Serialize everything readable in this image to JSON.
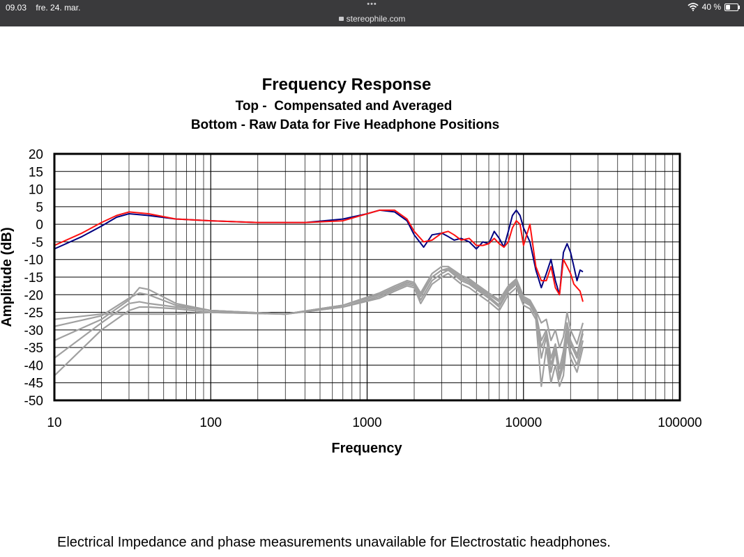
{
  "status_bar": {
    "time": "09.03",
    "date": "fre. 24. mar.",
    "dots": "•••",
    "url": "stereophile.com",
    "battery": "40 %",
    "battery_level": 0.4
  },
  "caption": "Electrical Impedance and phase measurements unavailable for Electrostatic headphones.",
  "colors": {
    "compensated_a": "#000080",
    "compensated_b": "#ff1010",
    "raw": "#a0a0a0"
  },
  "chart_data": {
    "type": "line",
    "title": "Frequency Response",
    "subtitle_1": "Top -  Compensated and Averaged",
    "subtitle_2": "Bottom - Raw Data for Five Headphone Positions",
    "xlabel": "Frequency",
    "ylabel": "Amplitude (dB)",
    "x_scale": "log",
    "xlim": [
      10,
      100000
    ],
    "ylim": [
      -50,
      20
    ],
    "grid": true,
    "x_ticks": [
      {
        "v": 10,
        "label": "10"
      },
      {
        "v": 100,
        "label": "100"
      },
      {
        "v": 1000,
        "label": "1000"
      },
      {
        "v": 10000,
        "label": "10000"
      },
      {
        "v": 100000,
        "label": "100000"
      }
    ],
    "y_ticks": [
      {
        "v": 20,
        "label": "20"
      },
      {
        "v": 15,
        "label": "15"
      },
      {
        "v": 10,
        "label": "10"
      },
      {
        "v": 5,
        "label": "5"
      },
      {
        "v": 0,
        "label": "0"
      },
      {
        "v": -5,
        "label": "-5"
      },
      {
        "v": -10,
        "label": "-10"
      },
      {
        "v": -15,
        "label": "-15"
      },
      {
        "v": -20,
        "label": "-20"
      },
      {
        "v": -25,
        "label": "-25"
      },
      {
        "v": -30,
        "label": "-30"
      },
      {
        "v": -35,
        "label": "-35"
      },
      {
        "v": -40,
        "label": "-40"
      },
      {
        "v": -45,
        "label": "-45"
      },
      {
        "v": -50,
        "label": "-50"
      }
    ],
    "series": [
      {
        "color_key": "compensated_a",
        "x": [
          10,
          15,
          20,
          25,
          30,
          40,
          60,
          100,
          200,
          400,
          700,
          1000,
          1200,
          1500,
          1800,
          2000,
          2300,
          2600,
          3000,
          3300,
          3600,
          4000,
          4500,
          5000,
          5500,
          6000,
          6500,
          7000,
          7500,
          8000,
          8500,
          9000,
          9500,
          10000,
          11000,
          12000,
          13000,
          14000,
          15000,
          16000,
          17000,
          18000,
          19000,
          20000,
          21000,
          22000,
          23000,
          24000
        ],
        "y": [
          -7,
          -3.5,
          -0.5,
          2,
          3,
          2.5,
          1.5,
          1,
          0.5,
          0.5,
          1.5,
          3,
          4,
          3.5,
          1,
          -3,
          -6.5,
          -3,
          -2.5,
          -3.5,
          -4.5,
          -4,
          -5,
          -7,
          -5,
          -5.5,
          -2,
          -4,
          -6.5,
          -2,
          2.5,
          4,
          2.5,
          -1,
          -5,
          -13,
          -18,
          -14,
          -10,
          -16,
          -20,
          -8,
          -5.5,
          -8,
          -12,
          -16,
          -13,
          -13.5
        ]
      },
      {
        "color_key": "compensated_b",
        "x": [
          10,
          15,
          20,
          25,
          30,
          40,
          60,
          100,
          200,
          400,
          700,
          1000,
          1200,
          1500,
          1800,
          2000,
          2300,
          2600,
          3000,
          3300,
          3600,
          4000,
          4500,
          5000,
          5500,
          6000,
          6500,
          7000,
          7500,
          8000,
          8500,
          9000,
          9500,
          10000,
          11000,
          12000,
          13000,
          14000,
          15000,
          16000,
          17000,
          18000,
          19000,
          20000,
          21000,
          22000,
          23000,
          24000
        ],
        "y": [
          -6,
          -2.5,
          0.5,
          2.5,
          3.5,
          3,
          1.5,
          1,
          0.5,
          0.5,
          1,
          3,
          4,
          4,
          1.5,
          -2,
          -5,
          -4.5,
          -2.5,
          -2,
          -3,
          -4.5,
          -4,
          -6,
          -6,
          -5.5,
          -4,
          -5.5,
          -6.5,
          -5,
          -1,
          1,
          0,
          -6,
          0,
          -12,
          -16,
          -16,
          -12,
          -18,
          -20,
          -10,
          -12,
          -14,
          -17,
          -18,
          -19,
          -22
        ]
      },
      {
        "color_key": "raw",
        "x": [
          10,
          20,
          30,
          35,
          40,
          60,
          100,
          300,
          700,
          1200,
          1500,
          1800,
          2000,
          2200,
          2600,
          3000,
          3300,
          4000,
          4500,
          5000,
          6000,
          7000,
          8000,
          9000,
          10000,
          11000,
          12000,
          13000,
          14000,
          15000,
          16000,
          17000,
          18000,
          19000,
          20000,
          22000,
          24000
        ],
        "y": [
          -29,
          -26,
          -21,
          -19.5,
          -20,
          -23,
          -24.5,
          -25.5,
          -23,
          -20,
          -18,
          -16.5,
          -17,
          -20,
          -15,
          -13,
          -12.5,
          -15,
          -16,
          -17.5,
          -20,
          -22,
          -18,
          -16,
          -21,
          -22,
          -25,
          -33,
          -30,
          -38,
          -34,
          -41,
          -36,
          -28,
          -33,
          -37,
          -30
        ]
      },
      {
        "color_key": "raw",
        "x": [
          10,
          20,
          30,
          35,
          40,
          60,
          100,
          300,
          700,
          1200,
          1500,
          1800,
          2000,
          2200,
          2600,
          3000,
          3300,
          4000,
          4500,
          5000,
          6000,
          7000,
          8000,
          9000,
          10000,
          11000,
          12000,
          13000,
          14000,
          15000,
          16000,
          17000,
          18000,
          19000,
          20000,
          22000,
          24000
        ],
        "y": [
          -33,
          -27,
          -21.5,
          -18,
          -18.5,
          -22.5,
          -24.5,
          -25.5,
          -23,
          -19.5,
          -17.5,
          -16,
          -16.5,
          -19.5,
          -14,
          -12,
          -12,
          -14.5,
          -15.5,
          -17,
          -19.5,
          -21.5,
          -17.5,
          -15.5,
          -20.5,
          -21.5,
          -24.5,
          -28,
          -27,
          -33,
          -30,
          -35,
          -32,
          -25,
          -30,
          -34,
          -28
        ]
      },
      {
        "color_key": "raw",
        "x": [
          10,
          20,
          30,
          35,
          40,
          60,
          100,
          300,
          700,
          1200,
          1500,
          1800,
          2000,
          2200,
          2600,
          3000,
          3300,
          4000,
          4500,
          5000,
          6000,
          7000,
          8000,
          9000,
          10000,
          11000,
          12000,
          13000,
          14000,
          15000,
          16000,
          17000,
          18000,
          19000,
          20000,
          22000,
          24000
        ],
        "y": [
          -38,
          -28,
          -22.5,
          -22,
          -22.5,
          -23.5,
          -24.5,
          -25.5,
          -23.5,
          -20.5,
          -18.5,
          -17,
          -17.5,
          -21.5,
          -16,
          -14,
          -13,
          -16,
          -17,
          -18.5,
          -21,
          -23.5,
          -19,
          -17,
          -22,
          -23,
          -26,
          -38,
          -32,
          -42,
          -36,
          -44,
          -40,
          -30,
          -36,
          -40,
          -33
        ]
      },
      {
        "color_key": "raw",
        "x": [
          10,
          20,
          30,
          35,
          40,
          60,
          100,
          300,
          700,
          1200,
          1500,
          1800,
          2000,
          2200,
          2600,
          3000,
          3300,
          4000,
          4500,
          5000,
          6000,
          7000,
          8000,
          9000,
          10000,
          11000,
          12000,
          13000,
          14000,
          15000,
          16000,
          17000,
          18000,
          19000,
          20000,
          22000,
          24000
        ],
        "y": [
          -43,
          -30,
          -24.5,
          -23.5,
          -23.5,
          -24,
          -25,
          -25.5,
          -23.5,
          -21,
          -19,
          -17.5,
          -18,
          -22.5,
          -17,
          -15,
          -14,
          -17,
          -18,
          -19.5,
          -22,
          -24.5,
          -20,
          -18,
          -23,
          -24,
          -27,
          -46,
          -35,
          -45,
          -40,
          -46,
          -43,
          -32,
          -38,
          -42,
          -35
        ]
      },
      {
        "color_key": "raw",
        "x": [
          10,
          20,
          30,
          35,
          40,
          60,
          100,
          300,
          700,
          1200,
          1500,
          1800,
          2000,
          2200,
          2600,
          3000,
          3300,
          4000,
          4500,
          5000,
          6000,
          7000,
          8000,
          9000,
          10000,
          11000,
          12000,
          13000,
          14000,
          15000,
          16000,
          17000,
          18000,
          19000,
          20000,
          22000,
          24000
        ],
        "y": [
          -27,
          -25.5,
          -25.5,
          -25.5,
          -25.5,
          -25.5,
          -25,
          -25.5,
          -23,
          -20,
          -18,
          -16.5,
          -17,
          -20.5,
          -15,
          -13,
          -13,
          -15.5,
          -16.5,
          -18,
          -20.5,
          -23,
          -18.5,
          -16.5,
          -21.5,
          -22.5,
          -25.5,
          -35,
          -31,
          -40,
          -35,
          -43,
          -38,
          -29,
          -34,
          -38,
          -31
        ]
      }
    ]
  }
}
